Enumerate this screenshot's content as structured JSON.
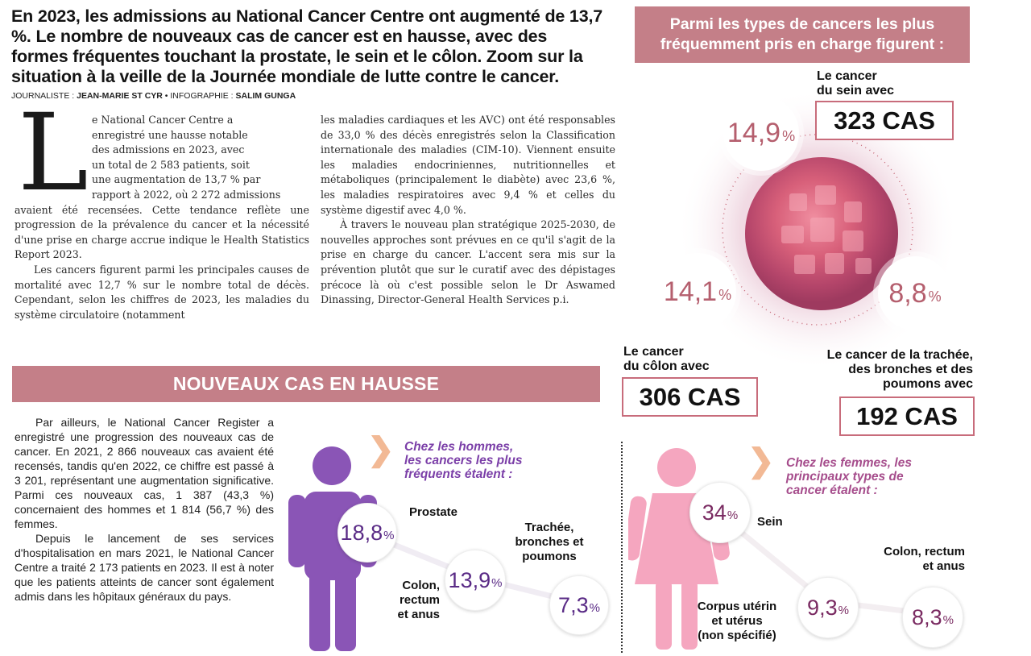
{
  "headline": "En 2023, les admissions au National Cancer Centre ont augmenté de 13,7 %. Le nombre de nouveaux cas de cancer est en hausse, avec des formes fréquentes touchant la prostate, le sein et le côlon. Zoom sur la situation à la veille de la Journée mondiale de lutte contre le cancer.",
  "byline": {
    "journalist_label": "JOURNALISTE :",
    "journalist": "JEAN-MARIE ST CYR",
    "sep": " • ",
    "infographie_label": "INFOGRAPHIE :",
    "infographie": "SALIM GUNGA"
  },
  "article": {
    "dropcap": "L",
    "drop_lines": [
      "e National Cancer Centre a",
      "enregistré une hausse notable",
      "des admissions en 2023, avec",
      "un total de 2 583 patients, soit",
      "une augmentation de 13,7 % par",
      "rapport à 2022, où 2 272 admissions"
    ],
    "p1_rest": "avaient été recensées. Cette tendance reflète une progression de la prévalence du cancer et la nécessité d'une prise en charge accrue indique le Health Statistics Report 2023.",
    "p2": "Les cancers figurent parmi les principales causes de mortalité avec 12,7 % sur le nombre total de décès. Cependant, selon les chiffres de 2023, les maladies du système circulatoire (notamment",
    "col2_p1": "les maladies cardiaques et les AVC) ont été responsables de 33,0 % des décès enregistrés selon la Classification internationale des maladies (CIM-10). Viennent ensuite les maladies endocriniennes, nutritionnelles et métaboliques (principalement le diabète) avec 23,6 %, les maladies respiratoires avec 9,4 % et celles du système digestif avec 4,0 %.",
    "col2_p2": "À travers le nouveau plan stratégique 2025-2030, de nouvelles approches sont prévues en ce qu'il s'agit de la prise en charge du cancer. L'accent sera mis sur la prévention plutôt que sur le curatif avec des dépistages précoce là où c'est possible selon le Dr Aswamed Dinassing, Director-General Health Services p.i."
  },
  "nouveaux": {
    "banner": "NOUVEAUX CAS EN HAUSSE",
    "p1": "Par ailleurs, le National Cancer Register a enregistré une progression des nouveaux cas de cancer. En 2021, 2 866 nouveaux cas avaient été recensés, tandis qu'en 2022, ce chiffre est passé à 3 201, représentant une augmentation significative. Parmi ces nouveaux cas, 1 387 (43,3 %) concernaient des hommes et 1 814 (56,7 %) des femmes.",
    "p2": "Depuis le lancement de ses services d'hospitalisation en mars 2021, le National Cancer Centre a traité 2 173 patients en 2023. Il est à noter que les patients atteints de cancer sont également admis dans les hôpitaux généraux du pays."
  },
  "types": {
    "banner_line1": "Parmi les types de cancers les plus",
    "banner_line2": "fréquemment pris en charge figurent :",
    "sein": {
      "label_line1": "Le cancer",
      "label_line2": "du sein avec",
      "cas": "323 CAS",
      "pct": "14,9",
      "unit": "%"
    },
    "colon": {
      "label_line1": "Le cancer",
      "label_line2": "du côlon avec",
      "cas": "306 CAS",
      "pct": "14,1",
      "unit": "%"
    },
    "trachee": {
      "label_line1": "Le cancer de la trachée,",
      "label_line2": "des bronches et des",
      "label_line3": "poumons avec",
      "cas": "192 CAS",
      "pct": "8,8",
      "unit": "%"
    }
  },
  "men": {
    "title_line1": "Chez les hommes,",
    "title_line2": "les cancers les plus",
    "title_line3": "fréquents étalent :",
    "items": [
      {
        "pct": "18,8",
        "unit": "%",
        "label": "Prostate"
      },
      {
        "pct": "13,9",
        "unit": "%",
        "label_line1": "Colon,",
        "label_line2": "rectum",
        "label_line3": "et anus"
      },
      {
        "pct": "7,3",
        "unit": "%",
        "label_line1": "Trachée,",
        "label_line2": "bronches et",
        "label_line3": "poumons"
      }
    ],
    "color": "#8a55b6"
  },
  "women": {
    "title_line1": "Chez les femmes, les",
    "title_line2": "principaux types de",
    "title_line3": "cancer étalent :",
    "items": [
      {
        "pct": "34",
        "unit": "%",
        "label": "Sein"
      },
      {
        "pct": "9,3",
        "unit": "%",
        "label_line1": "Corpus utérin",
        "label_line2": "et utérus",
        "label_line3": "(non spécifié)"
      },
      {
        "pct": "8,3",
        "unit": "%",
        "label_line1": "Colon, rectum",
        "label_line2": "et anus"
      }
    ],
    "color": "#f5a6bf"
  },
  "colors": {
    "banner": "#c47f88",
    "accent_pink": "#b55f6e",
    "chevron": "#f2b995",
    "men_purple": "#8a55b6",
    "women_pink": "#f5a6bf"
  }
}
